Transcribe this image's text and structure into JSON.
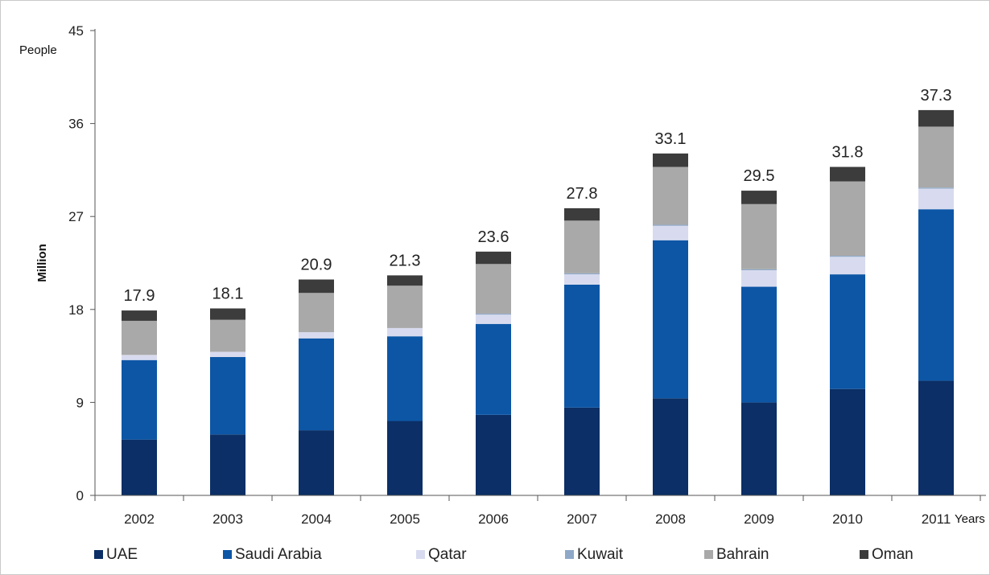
{
  "chart_data": {
    "type": "bar",
    "stacked": true,
    "title": "",
    "xlabel": "Years",
    "ylabel": "Million",
    "yunit": "People",
    "ylim": [
      0,
      45
    ],
    "yticks": [
      0,
      9,
      18,
      27,
      36,
      45
    ],
    "grid": false,
    "legend_position": "bottom",
    "categories": [
      "2002",
      "2003",
      "2004",
      "2005",
      "2006",
      "2007",
      "2008",
      "2009",
      "2010",
      "2011"
    ],
    "totals": [
      17.9,
      18.1,
      20.9,
      21.3,
      23.6,
      27.8,
      33.1,
      29.5,
      31.8,
      37.3
    ],
    "series": [
      {
        "name": "UAE",
        "color": "#0b2f66",
        "values": [
          5.4,
          5.9,
          6.3,
          7.2,
          7.8,
          8.5,
          9.4,
          9.0,
          10.3,
          11.1
        ]
      },
      {
        "name": "Saudi Arabia",
        "color": "#0d56a6",
        "values": [
          7.7,
          7.5,
          8.9,
          8.2,
          8.8,
          11.9,
          15.3,
          11.2,
          11.1,
          16.6
        ]
      },
      {
        "name": "Qatar",
        "color": "#d8dbef",
        "values": [
          0.5,
          0.5,
          0.6,
          0.8,
          0.9,
          1.0,
          1.4,
          1.6,
          1.7,
          2.0
        ]
      },
      {
        "name": "Kuwait",
        "color": "#8fa8c8",
        "values": [
          0.0,
          0.0,
          0.0,
          0.0,
          0.1,
          0.1,
          0.1,
          0.1,
          0.1,
          0.1
        ]
      },
      {
        "name": "Bahrain",
        "color": "#a9a9a9",
        "values": [
          3.3,
          3.1,
          3.8,
          4.1,
          4.8,
          5.1,
          5.6,
          6.3,
          7.2,
          5.9
        ]
      },
      {
        "name": "Oman",
        "color": "#3c3c3c",
        "values": [
          1.0,
          1.1,
          1.3,
          1.0,
          1.2,
          1.2,
          1.3,
          1.3,
          1.4,
          1.6
        ]
      }
    ]
  }
}
